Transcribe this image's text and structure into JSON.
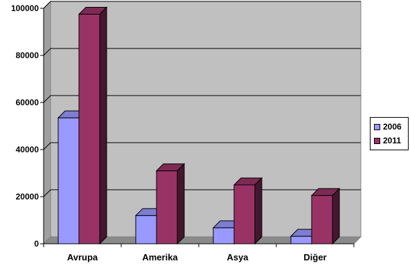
{
  "chart_data": {
    "type": "bar",
    "categories": [
      "Avrupa",
      "Amerika",
      "Asya",
      "Diğer"
    ],
    "series": [
      {
        "name": "2006",
        "values": [
          53500,
          12000,
          6800,
          3200
        ],
        "color": "#9999ff"
      },
      {
        "name": "2011",
        "values": [
          97500,
          31000,
          25000,
          20500
        ],
        "color": "#993366"
      }
    ],
    "yticks": [
      0,
      20000,
      40000,
      60000,
      80000,
      100000
    ],
    "ylim": [
      0,
      100000
    ],
    "grid": true,
    "legend_position": "right",
    "plot_background": "#c0c0c0",
    "title": "",
    "xlabel": "",
    "ylabel": ""
  }
}
